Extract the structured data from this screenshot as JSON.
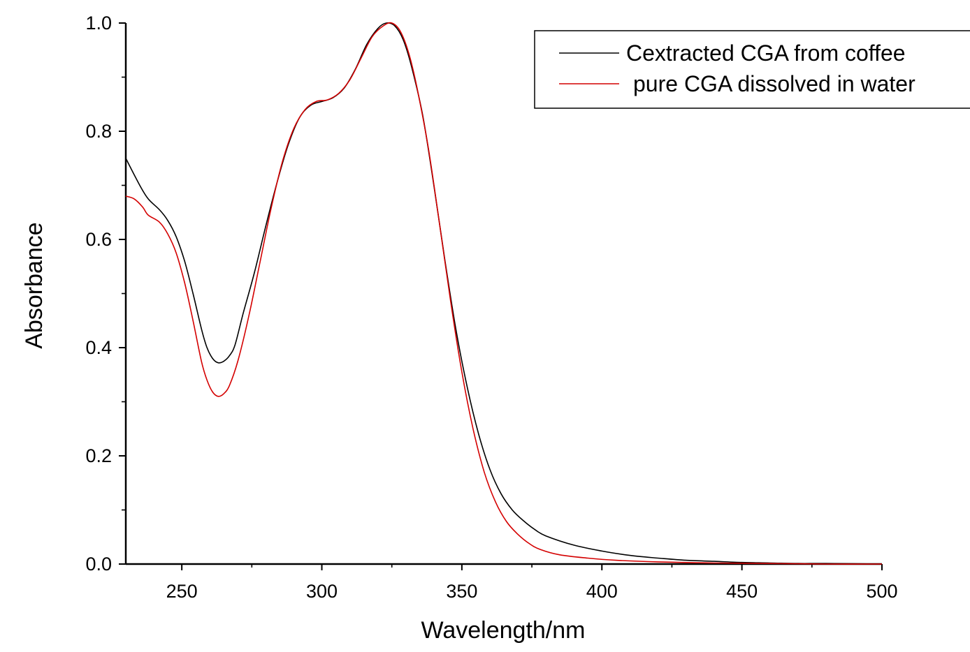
{
  "chart_data": {
    "type": "line",
    "title": "",
    "xlabel": "Wavelength/nm",
    "ylabel": "Absorbance",
    "xlim": [
      230,
      500
    ],
    "ylim": [
      0.0,
      1.0
    ],
    "x_ticks": [
      250,
      300,
      350,
      400,
      450,
      500
    ],
    "y_ticks": [
      0.0,
      0.2,
      0.4,
      0.6,
      0.8,
      1.0
    ],
    "x_tick_labels": [
      "250",
      "300",
      "350",
      "400",
      "450",
      "500"
    ],
    "y_tick_labels": [
      "0.0",
      "0.2",
      "0.4",
      "0.6",
      "0.8",
      "1.0"
    ],
    "grid": false,
    "legend_position": "top-right",
    "series": [
      {
        "name": "Cextracted CGA from coffee",
        "color": "#000000",
        "points": [
          [
            230,
            0.75
          ],
          [
            235,
            0.7
          ],
          [
            238,
            0.675
          ],
          [
            242,
            0.655
          ],
          [
            245,
            0.635
          ],
          [
            248,
            0.605
          ],
          [
            251,
            0.56
          ],
          [
            254,
            0.5
          ],
          [
            257,
            0.435
          ],
          [
            259,
            0.4
          ],
          [
            261,
            0.38
          ],
          [
            263,
            0.372
          ],
          [
            265,
            0.375
          ],
          [
            267,
            0.385
          ],
          [
            269,
            0.405
          ],
          [
            272,
            0.465
          ],
          [
            276,
            0.54
          ],
          [
            280,
            0.625
          ],
          [
            284,
            0.705
          ],
          [
            288,
            0.775
          ],
          [
            292,
            0.825
          ],
          [
            296,
            0.848
          ],
          [
            300,
            0.855
          ],
          [
            304,
            0.862
          ],
          [
            308,
            0.88
          ],
          [
            312,
            0.915
          ],
          [
            316,
            0.96
          ],
          [
            320,
            0.99
          ],
          [
            323,
            1.0
          ],
          [
            326,
            0.995
          ],
          [
            329,
            0.97
          ],
          [
            332,
            0.92
          ],
          [
            336,
            0.83
          ],
          [
            340,
            0.7
          ],
          [
            344,
            0.56
          ],
          [
            348,
            0.43
          ],
          [
            352,
            0.325
          ],
          [
            356,
            0.24
          ],
          [
            360,
            0.175
          ],
          [
            364,
            0.13
          ],
          [
            368,
            0.1
          ],
          [
            372,
            0.08
          ],
          [
            376,
            0.064
          ],
          [
            380,
            0.052
          ],
          [
            390,
            0.035
          ],
          [
            400,
            0.024
          ],
          [
            410,
            0.016
          ],
          [
            420,
            0.011
          ],
          [
            430,
            0.007
          ],
          [
            440,
            0.005
          ],
          [
            450,
            0.003
          ],
          [
            460,
            0.002
          ],
          [
            470,
            0.001
          ],
          [
            480,
            0.001
          ],
          [
            500,
            0.0
          ]
        ]
      },
      {
        "name": "pure CGA dissolved in water",
        "color": "#d40000",
        "points": [
          [
            230,
            0.68
          ],
          [
            233,
            0.675
          ],
          [
            236,
            0.66
          ],
          [
            238,
            0.645
          ],
          [
            242,
            0.632
          ],
          [
            245,
            0.61
          ],
          [
            248,
            0.575
          ],
          [
            251,
            0.52
          ],
          [
            254,
            0.45
          ],
          [
            257,
            0.375
          ],
          [
            259,
            0.34
          ],
          [
            261,
            0.318
          ],
          [
            263,
            0.31
          ],
          [
            265,
            0.315
          ],
          [
            267,
            0.33
          ],
          [
            270,
            0.375
          ],
          [
            274,
            0.46
          ],
          [
            278,
            0.56
          ],
          [
            282,
            0.66
          ],
          [
            286,
            0.745
          ],
          [
            290,
            0.805
          ],
          [
            294,
            0.84
          ],
          [
            298,
            0.855
          ],
          [
            302,
            0.858
          ],
          [
            306,
            0.87
          ],
          [
            310,
            0.895
          ],
          [
            314,
            0.935
          ],
          [
            318,
            0.975
          ],
          [
            322,
            0.995
          ],
          [
            325,
            1.0
          ],
          [
            328,
            0.985
          ],
          [
            331,
            0.945
          ],
          [
            334,
            0.88
          ],
          [
            338,
            0.77
          ],
          [
            342,
            0.63
          ],
          [
            346,
            0.485
          ],
          [
            350,
            0.355
          ],
          [
            354,
            0.25
          ],
          [
            358,
            0.17
          ],
          [
            362,
            0.115
          ],
          [
            366,
            0.078
          ],
          [
            370,
            0.055
          ],
          [
            374,
            0.038
          ],
          [
            378,
            0.027
          ],
          [
            385,
            0.017
          ],
          [
            395,
            0.011
          ],
          [
            405,
            0.007
          ],
          [
            420,
            0.004
          ],
          [
            440,
            0.002
          ],
          [
            460,
            0.001
          ],
          [
            480,
            0.0
          ],
          [
            500,
            0.0
          ]
        ]
      }
    ]
  }
}
